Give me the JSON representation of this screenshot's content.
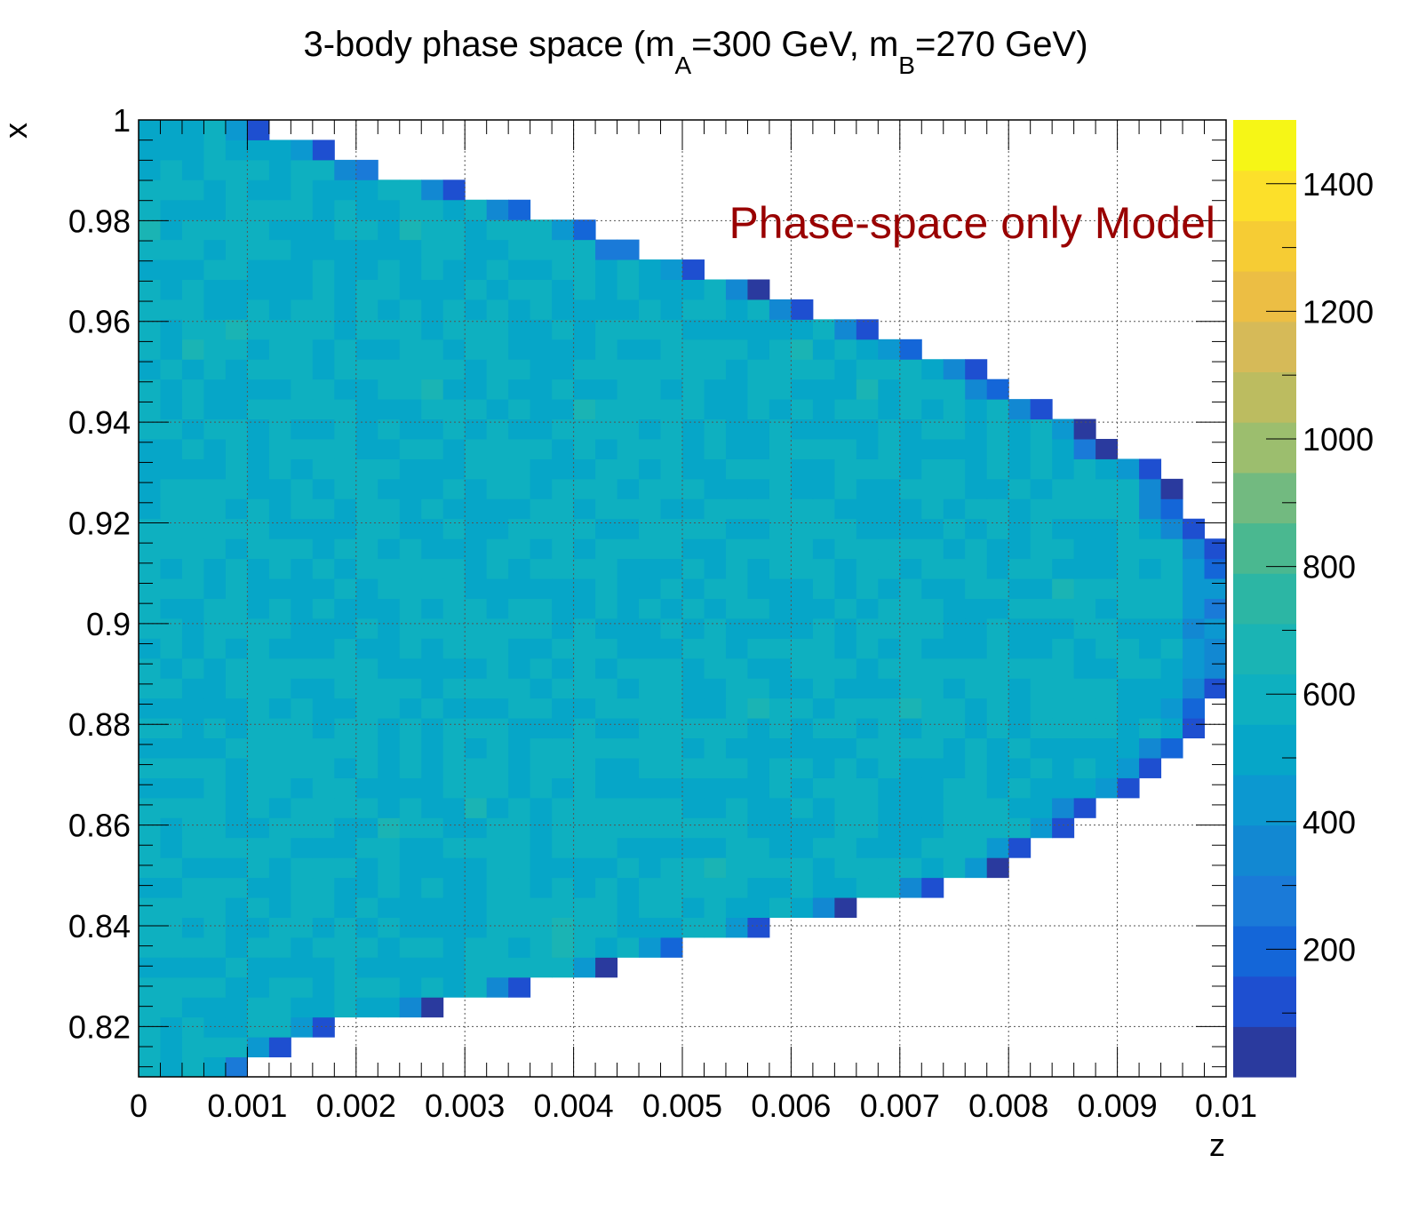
{
  "chart_data": {
    "type": "heatmap",
    "title": {
      "prefix": "3-body phase space (m",
      "sub_a": "A",
      "mid": "=300 GeV, m",
      "sub_b": "B",
      "suffix": "=270 GeV)"
    },
    "xlabel": "z",
    "ylabel": "x",
    "annotation": "Phase-space only Model",
    "annotation_color": "#990000",
    "xlim": [
      0,
      0.01
    ],
    "ylim": [
      0.81,
      1.0
    ],
    "x_bins": 50,
    "y_bins": 48,
    "x_ticks": [
      "0",
      "0.001",
      "0.002",
      "0.003",
      "0.004",
      "0.005",
      "0.006",
      "0.007",
      "0.008",
      "0.009",
      "0.01"
    ],
    "y_ticks": [
      "0.82",
      "0.84",
      "0.86",
      "0.88",
      "0.9",
      "0.92",
      "0.94",
      "0.96",
      "0.98",
      "1"
    ],
    "y_tick_values": [
      0.82,
      0.84,
      0.86,
      0.88,
      0.9,
      0.92,
      0.94,
      0.96,
      0.98,
      1.0
    ],
    "zlim": [
      0,
      1500
    ],
    "z_ticks": [
      "200",
      "400",
      "600",
      "800",
      "1000",
      "1200",
      "1400"
    ],
    "z_tick_values": [
      200,
      400,
      600,
      800,
      1000,
      1200,
      1400
    ],
    "grid": true,
    "colorbar_colors": [
      "#2a3a9e",
      "#1e4fd0",
      "#1466d8",
      "#1a7ad8",
      "#1288d2",
      "#0c98d0",
      "#06a6c8",
      "#0eb0c0",
      "#1ab4b4",
      "#2cb6a4",
      "#4ab890",
      "#72ba80",
      "#9cbe6e",
      "#bcbc60",
      "#d6ba58",
      "#ecbe44",
      "#f6cc34",
      "#fce02a",
      "#f6f616"
    ],
    "boundary": {
      "description": "kinematic limit: max z as a function of x",
      "samples": [
        [
          0.81,
          0.0008
        ],
        [
          0.82,
          0.0018
        ],
        [
          0.83,
          0.0039
        ],
        [
          0.84,
          0.0057
        ],
        [
          0.85,
          0.0077
        ],
        [
          0.86,
          0.0085
        ],
        [
          0.87,
          0.0093
        ],
        [
          0.88,
          0.0097
        ],
        [
          0.89,
          0.01
        ],
        [
          0.9,
          0.01
        ],
        [
          0.91,
          0.01
        ],
        [
          0.92,
          0.0097
        ],
        [
          0.93,
          0.0093
        ],
        [
          0.94,
          0.0085
        ],
        [
          0.95,
          0.0077
        ],
        [
          0.96,
          0.0065
        ],
        [
          0.97,
          0.0051
        ],
        [
          0.98,
          0.0039
        ],
        [
          0.99,
          0.0022
        ],
        [
          1.0,
          0.0008
        ]
      ]
    },
    "typical_bin_content": 560
  }
}
